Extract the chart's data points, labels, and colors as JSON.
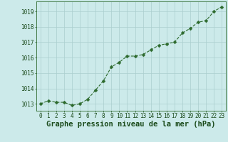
{
  "x": [
    0,
    1,
    2,
    3,
    4,
    5,
    6,
    7,
    8,
    9,
    10,
    11,
    12,
    13,
    14,
    15,
    16,
    17,
    18,
    19,
    20,
    21,
    22,
    23
  ],
  "y": [
    1013.0,
    1013.2,
    1013.1,
    1013.1,
    1012.9,
    1013.0,
    1013.3,
    1013.9,
    1014.5,
    1015.4,
    1015.7,
    1016.1,
    1016.1,
    1016.2,
    1016.5,
    1016.8,
    1016.9,
    1017.0,
    1017.6,
    1017.9,
    1018.3,
    1018.4,
    1019.0,
    1019.3
  ],
  "line_color": "#2d6a2d",
  "marker": "D",
  "marker_size": 2.5,
  "bg_color": "#cceaea",
  "grid_color": "#aacece",
  "xlabel": "Graphe pression niveau de la mer (hPa)",
  "xlabel_color": "#1a4a1a",
  "xlabel_fontsize": 7.5,
  "ytick_labels": [
    "1013",
    "1014",
    "1015",
    "1016",
    "1017",
    "1018",
    "1019"
  ],
  "ytick_values": [
    1013,
    1014,
    1015,
    1016,
    1017,
    1018,
    1019
  ],
  "ylim": [
    1012.55,
    1019.65
  ],
  "xlim": [
    -0.5,
    23.5
  ],
  "tick_color": "#1a4a1a",
  "tick_fontsize": 5.5,
  "spine_color": "#2d6a2d",
  "line_width": 0.8
}
